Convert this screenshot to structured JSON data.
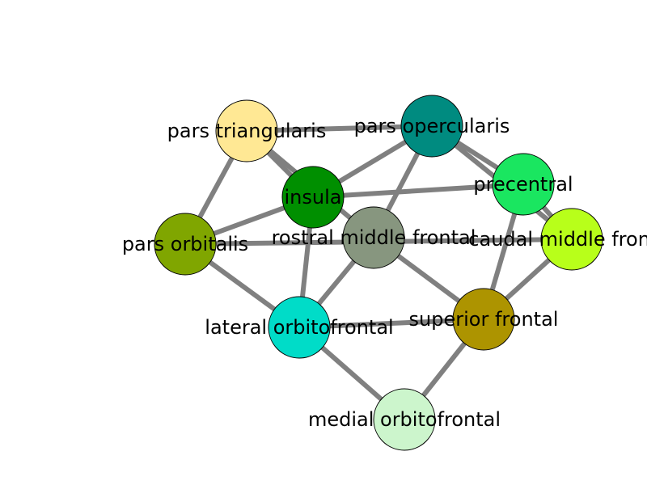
{
  "graph": {
    "edge_color": "#808080",
    "node_outline_color": "#000000",
    "nodes": [
      {
        "id": "pars_triangularis",
        "label": "pars triangularis",
        "color": "#ffe894"
      },
      {
        "id": "pars_opercularis",
        "label": "pars opercularis",
        "color": "#008b80"
      },
      {
        "id": "insula",
        "label": "insula",
        "color": "#008f00"
      },
      {
        "id": "precentral",
        "label": "precentral",
        "color": "#1ae660"
      },
      {
        "id": "pars_orbitalis",
        "label": "pars orbitalis",
        "color": "#80a600"
      },
      {
        "id": "rostral_middle_frontal",
        "label": "rostral middle frontal",
        "color": "#87967f"
      },
      {
        "id": "caudal_middle_frontal",
        "label": "caudal middle frontal",
        "color": "#b8ff1a"
      },
      {
        "id": "lateral_orbitofrontal",
        "label": "lateral orbitofrontal",
        "color": "#00dcc8"
      },
      {
        "id": "superior_frontal",
        "label": "superior frontal",
        "color": "#ad9400"
      },
      {
        "id": "medial_orbitofrontal",
        "label": "medial orbitofrontal",
        "color": "#ccf5cc"
      }
    ],
    "edges": [
      [
        "pars_triangularis",
        "pars_opercularis"
      ],
      [
        "pars_triangularis",
        "insula"
      ],
      [
        "pars_triangularis",
        "pars_orbitalis"
      ],
      [
        "pars_triangularis",
        "rostral_middle_frontal"
      ],
      [
        "pars_opercularis",
        "insula"
      ],
      [
        "pars_opercularis",
        "precentral"
      ],
      [
        "pars_opercularis",
        "caudal_middle_frontal"
      ],
      [
        "pars_opercularis",
        "rostral_middle_frontal"
      ],
      [
        "insula",
        "precentral"
      ],
      [
        "insula",
        "pars_orbitalis"
      ],
      [
        "insula",
        "lateral_orbitofrontal"
      ],
      [
        "pars_orbitalis",
        "caudal_middle_frontal"
      ],
      [
        "pars_orbitalis",
        "lateral_orbitofrontal"
      ],
      [
        "precentral",
        "caudal_middle_frontal"
      ],
      [
        "precentral",
        "superior_frontal"
      ],
      [
        "rostral_middle_frontal",
        "lateral_orbitofrontal"
      ],
      [
        "rostral_middle_frontal",
        "superior_frontal"
      ],
      [
        "caudal_middle_frontal",
        "superior_frontal"
      ],
      [
        "lateral_orbitofrontal",
        "superior_frontal"
      ],
      [
        "lateral_orbitofrontal",
        "medial_orbitofrontal"
      ],
      [
        "superior_frontal",
        "medial_orbitofrontal"
      ]
    ]
  }
}
